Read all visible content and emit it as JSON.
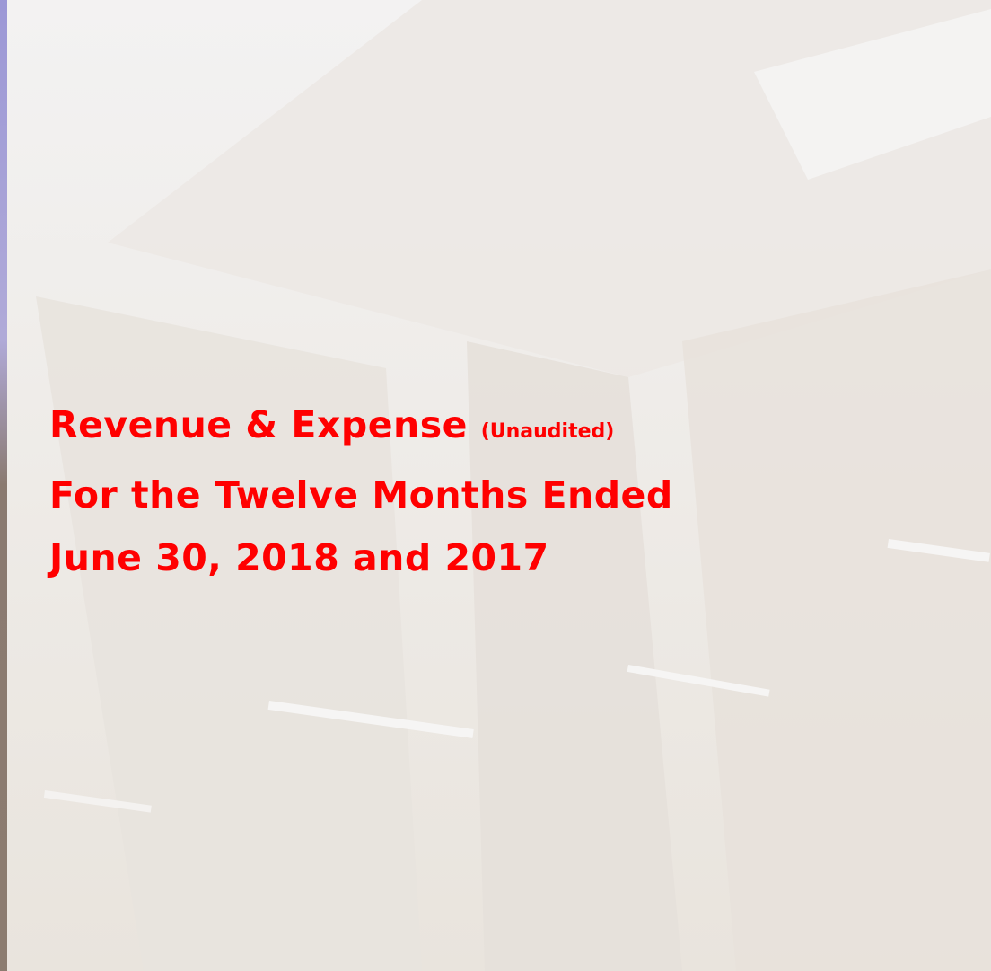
{
  "slide": {
    "title": {
      "line1": "Revenue & Expense",
      "note": "(Unaudited)",
      "line2": "For the Twelve Months Ended",
      "line3": "June 30, 2018 and 2017"
    }
  }
}
